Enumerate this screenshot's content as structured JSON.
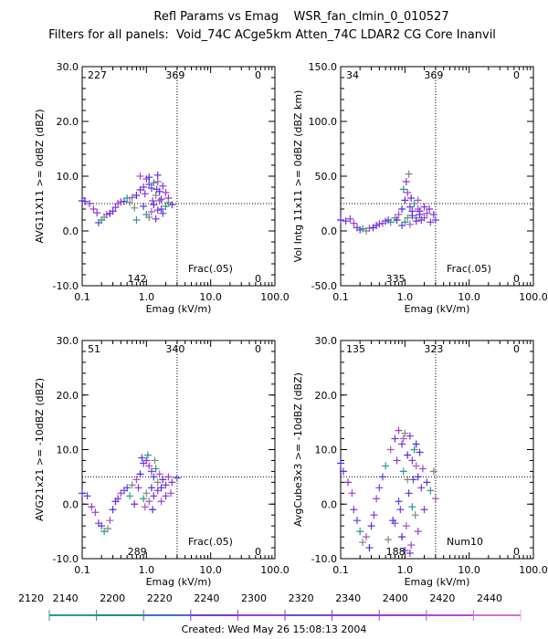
{
  "header": {
    "title": "Refl Params vs Emag    WSR_fan_clmin_0_010527",
    "subtitle": "Filters for all panels:  Void_74C ACge5km Atten_74C LDAR2 CG Core Inanvil"
  },
  "footer": {
    "created": "Created: Wed May 26 15:08:13 2004"
  },
  "colorbar": {
    "labels": [
      "2120",
      "2140",
      "2200",
      "2220",
      "2240",
      "2300",
      "2320",
      "2340",
      "2400",
      "2420",
      "2440"
    ],
    "colors": [
      "#2a9a8a",
      "#1f8f8a",
      "#4a6ad0",
      "#7a3ad8",
      "#9a40d0",
      "#6a4ae0",
      "#8a3ad8",
      "#a040d0",
      "#b050c8",
      "#d070d0",
      "#f0a0e0"
    ]
  },
  "chart_data": [
    {
      "type": "scatter",
      "xlabel": "Emag (kV/m)",
      "ylabel": "AVG11X11 >= 0dBZ (dBZ)",
      "xscale": "log",
      "xlim": [
        0.1,
        100.0
      ],
      "ylim": [
        -10.0,
        30.0
      ],
      "xticks": [
        "0.1",
        "1.0",
        "10.0",
        "100.0"
      ],
      "yticks": [
        "-10.0",
        "0.0",
        "10.0",
        "20.0",
        "30.0"
      ],
      "threshold_x": 3.0,
      "threshold_y": 5.0,
      "counts": {
        "top_left": "227",
        "top_mid": "369",
        "top_right": "0",
        "bottom_mid": "142",
        "bottom_right": "0"
      },
      "annotation": "Frac(.05)",
      "points": [
        [
          0.1,
          5.5
        ],
        [
          0.11,
          5.4
        ],
        [
          0.13,
          5.0
        ],
        [
          0.15,
          4.0
        ],
        [
          0.17,
          3.3
        ],
        [
          0.18,
          1.5
        ],
        [
          0.2,
          2.0
        ],
        [
          0.22,
          2.5
        ],
        [
          0.24,
          3.0
        ],
        [
          0.27,
          3.2
        ],
        [
          0.3,
          3.6
        ],
        [
          0.33,
          4.3
        ],
        [
          0.36,
          5.0
        ],
        [
          0.4,
          5.3
        ],
        [
          0.45,
          5.4
        ],
        [
          0.5,
          6.0
        ],
        [
          0.55,
          5.2
        ],
        [
          0.6,
          6.1
        ],
        [
          0.7,
          6.5
        ],
        [
          0.8,
          7.5
        ],
        [
          0.9,
          8.0
        ],
        [
          1.0,
          9.5
        ],
        [
          1.1,
          8.5
        ],
        [
          1.2,
          7.8
        ],
        [
          1.3,
          8.8
        ],
        [
          1.4,
          6.5
        ],
        [
          1.5,
          9.0
        ],
        [
          1.6,
          7.2
        ],
        [
          1.7,
          5.8
        ],
        [
          1.8,
          8.2
        ],
        [
          2.0,
          7.0
        ],
        [
          2.2,
          6.0
        ],
        [
          0.9,
          4.5
        ],
        [
          1.0,
          3.0
        ],
        [
          1.1,
          2.5
        ],
        [
          1.2,
          3.5
        ],
        [
          1.3,
          4.8
        ],
        [
          1.4,
          2.2
        ],
        [
          1.5,
          3.8
        ],
        [
          1.6,
          5.5
        ],
        [
          1.7,
          4.0
        ],
        [
          1.8,
          3.2
        ],
        [
          2.0,
          4.5
        ],
        [
          2.2,
          5.2
        ],
        [
          0.8,
          10.0
        ],
        [
          1.1,
          9.8
        ],
        [
          1.5,
          10.2
        ],
        [
          0.95,
          6.8
        ],
        [
          1.25,
          5.5
        ],
        [
          1.45,
          7.6
        ],
        [
          2.5,
          4.8
        ],
        [
          0.7,
          2.0
        ],
        [
          0.65,
          4.2
        ]
      ]
    },
    {
      "type": "scatter",
      "xlabel": "Emag (kV/m)",
      "ylabel": "Vol Intg 11x11 >= 0dBZ (dBZ km)",
      "xscale": "log",
      "xlim": [
        0.1,
        100.0
      ],
      "ylim": [
        -50.0,
        150.0
      ],
      "xticks": [
        "0.1",
        "1.0",
        "10.0",
        "100.0"
      ],
      "yticks": [
        "-50.0",
        "0.0",
        "50.0",
        "100.0",
        "150.0"
      ],
      "threshold_x": 3.0,
      "threshold_y": 25.0,
      "counts": {
        "top_left": "34",
        "top_mid": "369",
        "top_right": "0",
        "bottom_mid": "335",
        "bottom_right": "0"
      },
      "annotation": "Frac(.05)",
      "points": [
        [
          0.1,
          10.0
        ],
        [
          0.12,
          9.0
        ],
        [
          0.14,
          11.0
        ],
        [
          0.16,
          7.0
        ],
        [
          0.18,
          3.0
        ],
        [
          0.2,
          1.0
        ],
        [
          0.22,
          2.0
        ],
        [
          0.25,
          0.0
        ],
        [
          0.28,
          2.5
        ],
        [
          0.32,
          3.0
        ],
        [
          0.36,
          5.0
        ],
        [
          0.4,
          6.5
        ],
        [
          0.45,
          7.0
        ],
        [
          0.5,
          9.0
        ],
        [
          0.55,
          10.0
        ],
        [
          0.6,
          8.0
        ],
        [
          0.7,
          12.0
        ],
        [
          0.8,
          15.0
        ],
        [
          0.9,
          20.0
        ],
        [
          1.0,
          28.0
        ],
        [
          1.05,
          45.0
        ],
        [
          1.1,
          35.0
        ],
        [
          1.2,
          22.0
        ],
        [
          1.3,
          18.0
        ],
        [
          1.4,
          25.0
        ],
        [
          1.5,
          12.0
        ],
        [
          1.6,
          20.0
        ],
        [
          1.7,
          15.0
        ],
        [
          1.8,
          10.0
        ],
        [
          2.0,
          22.0
        ],
        [
          2.2,
          16.0
        ],
        [
          2.5,
          8.0
        ],
        [
          0.9,
          5.0
        ],
        [
          1.0,
          8.0
        ],
        [
          1.1,
          12.0
        ],
        [
          1.2,
          6.0
        ],
        [
          1.3,
          14.0
        ],
        [
          1.5,
          9.0
        ],
        [
          1.7,
          18.0
        ],
        [
          2.0,
          12.0
        ],
        [
          2.8,
          15.0
        ],
        [
          3.0,
          10.0
        ],
        [
          0.95,
          38.0
        ],
        [
          1.15,
          52.0
        ],
        [
          1.6,
          28.0
        ],
        [
          0.75,
          10.0
        ],
        [
          1.25,
          30.0
        ],
        [
          2.4,
          20.0
        ]
      ]
    },
    {
      "type": "scatter",
      "xlabel": "Emag (kV/m)",
      "ylabel": "AVG21x21 >= -10dBZ (dBZ)",
      "xscale": "log",
      "xlim": [
        0.1,
        100.0
      ],
      "ylim": [
        -10.0,
        30.0
      ],
      "xticks": [
        "0.1",
        "1.0",
        "10.0",
        "100.0"
      ],
      "yticks": [
        "-10.0",
        "0.0",
        "10.0",
        "20.0",
        "30.0"
      ],
      "threshold_x": 3.0,
      "threshold_y": 5.0,
      "counts": {
        "top_left": "51",
        "top_mid": "340",
        "top_right": "0",
        "bottom_mid": "289",
        "bottom_right": "0"
      },
      "annotation": "Frac(.05)",
      "points": [
        [
          0.1,
          2.0
        ],
        [
          0.12,
          1.5
        ],
        [
          0.14,
          -0.5
        ],
        [
          0.16,
          -1.5
        ],
        [
          0.18,
          -3.5
        ],
        [
          0.2,
          -4.0
        ],
        [
          0.22,
          -5.0
        ],
        [
          0.25,
          -4.5
        ],
        [
          0.27,
          -3.0
        ],
        [
          0.3,
          -1.0
        ],
        [
          0.33,
          0.5
        ],
        [
          0.36,
          1.0
        ],
        [
          0.4,
          2.0
        ],
        [
          0.45,
          2.5
        ],
        [
          0.5,
          3.0
        ],
        [
          0.55,
          1.5
        ],
        [
          0.6,
          3.5
        ],
        [
          0.7,
          4.5
        ],
        [
          0.8,
          5.5
        ],
        [
          0.9,
          7.5
        ],
        [
          1.0,
          8.0
        ],
        [
          1.1,
          7.0
        ],
        [
          1.2,
          6.0
        ],
        [
          1.3,
          5.0
        ],
        [
          1.4,
          6.5
        ],
        [
          1.5,
          4.0
        ],
        [
          1.6,
          5.5
        ],
        [
          1.7,
          3.0
        ],
        [
          1.8,
          4.5
        ],
        [
          2.0,
          3.5
        ],
        [
          2.2,
          5.0
        ],
        [
          2.5,
          4.0
        ],
        [
          3.0,
          4.8
        ],
        [
          0.9,
          1.0
        ],
        [
          1.0,
          2.0
        ],
        [
          1.1,
          0.5
        ],
        [
          1.2,
          3.0
        ],
        [
          1.3,
          1.5
        ],
        [
          1.5,
          2.5
        ],
        [
          1.7,
          0.5
        ],
        [
          2.0,
          1.5
        ],
        [
          0.85,
          8.5
        ],
        [
          1.05,
          9.0
        ],
        [
          1.35,
          8.0
        ],
        [
          0.95,
          -0.5
        ],
        [
          1.25,
          -1.0
        ],
        [
          0.65,
          0.0
        ],
        [
          0.75,
          3.0
        ],
        [
          2.4,
          2.0
        ]
      ]
    },
    {
      "type": "scatter",
      "xlabel": "Emag (kV/m)",
      "ylabel": "AvgCube3x3 >= -10dBZ (dBZ)",
      "xscale": "log",
      "xlim": [
        0.1,
        100.0
      ],
      "ylim": [
        -10.0,
        30.0
      ],
      "xticks": [
        "0.1",
        "1.0",
        "10.0",
        "100.0"
      ],
      "yticks": [
        "-10.0",
        "0.0",
        "10.0",
        "20.0",
        "30.0"
      ],
      "threshold_x": 3.0,
      "threshold_y": 5.0,
      "counts": {
        "top_left": "135",
        "top_mid": "323",
        "top_right": "0",
        "bottom_mid": "188",
        "bottom_right": "0"
      },
      "annotation": "Num10",
      "points": [
        [
          0.1,
          7.5
        ],
        [
          0.11,
          6.0
        ],
        [
          0.13,
          4.0
        ],
        [
          0.15,
          2.0
        ],
        [
          0.16,
          -1.0
        ],
        [
          0.18,
          -3.0
        ],
        [
          0.2,
          -5.0
        ],
        [
          0.22,
          -7.0
        ],
        [
          0.25,
          -6.0
        ],
        [
          0.28,
          -8.0
        ],
        [
          0.3,
          -4.0
        ],
        [
          0.33,
          -2.0
        ],
        [
          0.36,
          1.0
        ],
        [
          0.4,
          3.0
        ],
        [
          0.45,
          5.0
        ],
        [
          0.5,
          7.0
        ],
        [
          0.55,
          -6.5
        ],
        [
          0.6,
          10.0
        ],
        [
          0.65,
          -3.0
        ],
        [
          0.7,
          12.0
        ],
        [
          0.75,
          8.0
        ],
        [
          0.8,
          13.5
        ],
        [
          0.85,
          -1.0
        ],
        [
          0.9,
          11.0
        ],
        [
          0.95,
          6.0
        ],
        [
          1.0,
          13.0
        ],
        [
          1.05,
          -4.0
        ],
        [
          1.1,
          9.0
        ],
        [
          1.15,
          2.0
        ],
        [
          1.2,
          12.5
        ],
        [
          1.25,
          -7.5
        ],
        [
          1.3,
          8.0
        ],
        [
          1.35,
          4.5
        ],
        [
          1.4,
          10.0
        ],
        [
          1.45,
          -2.0
        ],
        [
          1.5,
          7.0
        ],
        [
          1.6,
          5.0
        ],
        [
          1.7,
          9.5
        ],
        [
          1.8,
          3.0
        ],
        [
          1.9,
          6.5
        ],
        [
          2.0,
          -1.0
        ],
        [
          2.2,
          4.0
        ],
        [
          2.5,
          2.5
        ],
        [
          2.8,
          6.0
        ],
        [
          3.0,
          1.0
        ],
        [
          0.9,
          -6.0
        ],
        [
          1.0,
          -8.5
        ],
        [
          1.2,
          -9.0
        ],
        [
          1.6,
          -5.0
        ],
        [
          0.7,
          -3.5
        ],
        [
          0.8,
          0.5
        ],
        [
          1.3,
          -0.5
        ],
        [
          1.1,
          4.5
        ],
        [
          0.95,
          12.0
        ],
        [
          1.5,
          11.0
        ]
      ]
    }
  ]
}
